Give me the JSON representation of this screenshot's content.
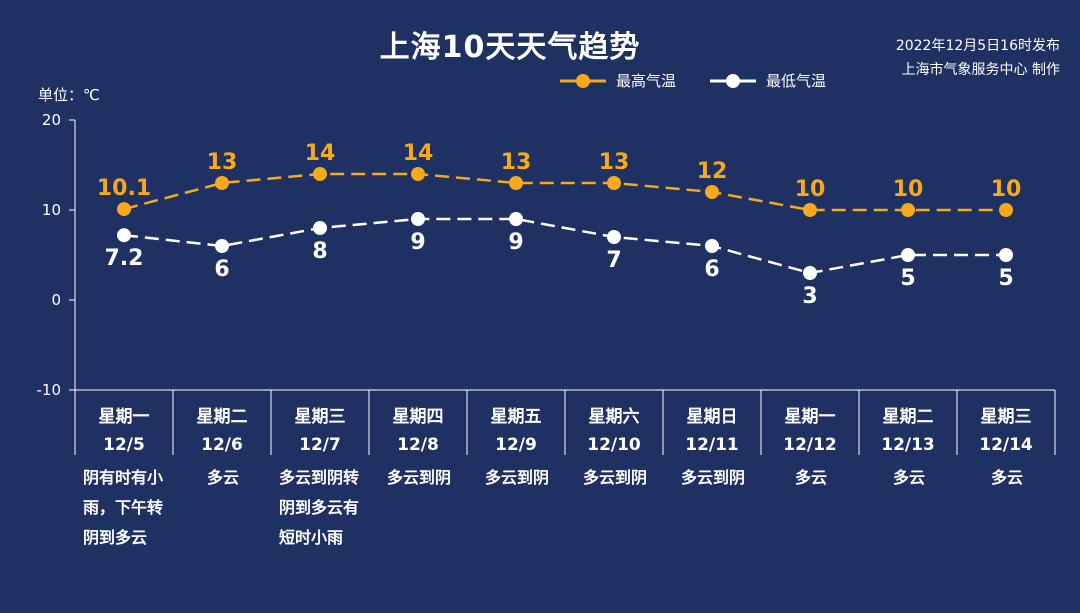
{
  "title": "上海10天天气趋势",
  "issue_time": "2022年12月5日16时发布",
  "issuer": "上海市气象服务中心 制作",
  "unit_label": "单位：℃",
  "colors": {
    "high": "#f7a81b",
    "low": "#ffffff",
    "background": "#1f3062",
    "axis": "#ffffff"
  },
  "chart_data": {
    "type": "line",
    "title": "上海10天天气趋势",
    "ylabel": "单位：℃",
    "ylim": [
      -10,
      20
    ],
    "yticks": [
      -10,
      0,
      10,
      20
    ],
    "grid": false,
    "legend_position": "top-right",
    "categories": [
      {
        "weekday": "星期一",
        "date": "12/5"
      },
      {
        "weekday": "星期二",
        "date": "12/6"
      },
      {
        "weekday": "星期三",
        "date": "12/7"
      },
      {
        "weekday": "星期四",
        "date": "12/8"
      },
      {
        "weekday": "星期五",
        "date": "12/9"
      },
      {
        "weekday": "星期六",
        "date": "12/10"
      },
      {
        "weekday": "星期日",
        "date": "12/11"
      },
      {
        "weekday": "星期一",
        "date": "12/12"
      },
      {
        "weekday": "星期二",
        "date": "12/13"
      },
      {
        "weekday": "星期三",
        "date": "12/14"
      }
    ],
    "series": [
      {
        "name": "最高气温",
        "values": [
          10.1,
          13,
          14,
          14,
          13,
          13,
          12,
          10,
          10,
          10
        ],
        "labels": [
          "10.1",
          "13",
          "14",
          "14",
          "13",
          "13",
          "12",
          "10",
          "10",
          "10"
        ]
      },
      {
        "name": "最低气温",
        "values": [
          7.2,
          6,
          8,
          9,
          9,
          7,
          6,
          3,
          5,
          5
        ],
        "labels": [
          "7.2",
          "6",
          "8",
          "9",
          "9",
          "7",
          "6",
          "3",
          "5",
          "5"
        ]
      }
    ],
    "weather": [
      [
        "阴有时有小",
        "雨，下午转",
        "阴到多云"
      ],
      [
        "多云"
      ],
      [
        "多云到阴转",
        "阴到多云有",
        "短时小雨"
      ],
      [
        "多云到阴"
      ],
      [
        "多云到阴"
      ],
      [
        "多云到阴"
      ],
      [
        "多云到阴"
      ],
      [
        "多云"
      ],
      [
        "多云"
      ],
      [
        "多云"
      ]
    ]
  }
}
